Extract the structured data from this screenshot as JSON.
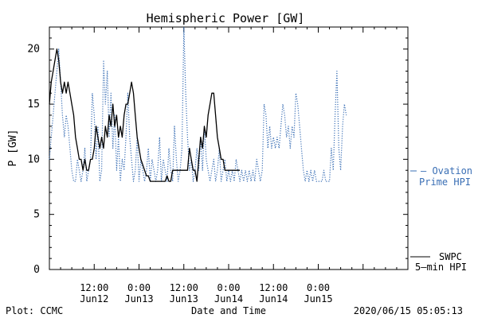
{
  "chart_data": {
    "type": "line",
    "title": "Hemispheric Power [GW]",
    "ylabel": "P [GW]",
    "xlabel": "Date and Time",
    "ylim": [
      0,
      22
    ],
    "xlim_hours": [
      0,
      96
    ],
    "grid": false,
    "yticks": [
      0,
      5,
      10,
      15,
      20
    ],
    "xticks": [
      {
        "t": 12,
        "time": "12:00",
        "date": "Jun12"
      },
      {
        "t": 24,
        "time": "0:00",
        "date": "Jun13"
      },
      {
        "t": 36,
        "time": "12:00",
        "date": "Jun13"
      },
      {
        "t": 48,
        "time": "0:00",
        "date": "Jun14"
      },
      {
        "t": 60,
        "time": "12:00",
        "date": "Jun14"
      },
      {
        "t": 72,
        "time": "0:00",
        "date": "Jun15"
      }
    ],
    "series": [
      {
        "name": "SWPC 5-min HPI",
        "label_line1": "SWPC",
        "label_line2": "5—min HPI",
        "color": "#000000",
        "style": "solid",
        "points": [
          [
            0,
            15
          ],
          [
            0.5,
            17
          ],
          [
            1,
            18
          ],
          [
            1.5,
            19
          ],
          [
            2,
            20
          ],
          [
            2.5,
            19
          ],
          [
            3,
            17
          ],
          [
            3.5,
            16
          ],
          [
            4,
            17
          ],
          [
            4.5,
            16
          ],
          [
            5,
            17
          ],
          [
            5.5,
            16
          ],
          [
            6,
            15
          ],
          [
            6.5,
            14
          ],
          [
            7,
            12
          ],
          [
            7.5,
            11
          ],
          [
            8,
            10
          ],
          [
            8.5,
            10
          ],
          [
            9,
            9
          ],
          [
            9.5,
            10
          ],
          [
            10,
            9
          ],
          [
            10.5,
            9
          ],
          [
            11,
            10
          ],
          [
            11.5,
            10
          ],
          [
            12,
            11
          ],
          [
            12.5,
            13
          ],
          [
            13,
            12
          ],
          [
            13.5,
            11
          ],
          [
            14,
            12
          ],
          [
            14.5,
            11
          ],
          [
            15,
            13
          ],
          [
            15.5,
            12
          ],
          [
            16,
            14
          ],
          [
            16.5,
            13
          ],
          [
            17,
            15
          ],
          [
            17.5,
            13
          ],
          [
            18,
            14
          ],
          [
            18.5,
            12
          ],
          [
            19,
            13
          ],
          [
            19.5,
            12
          ],
          [
            20,
            14
          ],
          [
            20.5,
            15
          ],
          [
            21,
            15
          ],
          [
            21.5,
            16
          ],
          [
            22,
            17
          ],
          [
            22.5,
            16
          ],
          [
            23,
            14
          ],
          [
            23.5,
            12
          ],
          [
            24,
            11
          ],
          [
            24.5,
            10
          ],
          [
            25,
            9.5
          ],
          [
            25.5,
            9
          ],
          [
            26,
            8.5
          ],
          [
            26.5,
            8.5
          ],
          [
            27,
            8
          ],
          [
            28,
            8
          ],
          [
            29,
            8
          ],
          [
            30,
            8
          ],
          [
            31,
            8
          ],
          [
            31.5,
            8.5
          ],
          [
            32,
            8
          ],
          [
            32.5,
            8
          ],
          [
            33,
            9
          ],
          [
            34,
            9
          ],
          [
            35,
            9
          ],
          [
            36,
            9
          ],
          [
            37,
            9
          ],
          [
            37.5,
            11
          ],
          [
            38,
            10
          ],
          [
            38.5,
            9
          ],
          [
            39,
            9
          ],
          [
            39.5,
            8
          ],
          [
            40,
            10
          ],
          [
            40.5,
            12
          ],
          [
            41,
            11
          ],
          [
            41.5,
            13
          ],
          [
            42,
            12
          ],
          [
            42.5,
            14
          ],
          [
            43,
            15
          ],
          [
            43.5,
            16
          ],
          [
            44,
            16
          ],
          [
            44.5,
            14
          ],
          [
            45,
            12
          ],
          [
            45.5,
            11
          ],
          [
            46,
            10
          ],
          [
            46.5,
            10
          ],
          [
            47,
            9
          ],
          [
            48,
            9
          ],
          [
            49,
            9
          ],
          [
            50,
            9
          ],
          [
            51,
            9
          ]
        ]
      },
      {
        "name": "Ovation Prime HPI",
        "label_line1": "— Ovation",
        "label_line2": "Prime HPI",
        "color": "#3a6fb5",
        "style": "dotted",
        "points": [
          [
            0,
            10
          ],
          [
            0.5,
            12
          ],
          [
            1,
            14
          ],
          [
            1.5,
            16
          ],
          [
            2,
            18
          ],
          [
            2.5,
            20
          ],
          [
            3,
            17
          ],
          [
            3.5,
            14
          ],
          [
            4,
            12
          ],
          [
            4.5,
            14
          ],
          [
            5,
            13
          ],
          [
            5.5,
            11
          ],
          [
            6,
            9
          ],
          [
            6.5,
            8
          ],
          [
            7,
            8
          ],
          [
            7.5,
            10
          ],
          [
            8,
            9
          ],
          [
            8.5,
            8
          ],
          [
            9,
            9
          ],
          [
            9.5,
            11
          ],
          [
            10,
            8
          ],
          [
            10.5,
            9
          ],
          [
            11,
            10
          ],
          [
            11.5,
            16
          ],
          [
            12,
            14
          ],
          [
            12.5,
            10
          ],
          [
            13,
            13
          ],
          [
            13.5,
            8
          ],
          [
            14,
            9
          ],
          [
            14.5,
            19
          ],
          [
            15,
            15
          ],
          [
            15.5,
            18
          ],
          [
            16,
            12
          ],
          [
            16.5,
            16
          ],
          [
            17,
            11
          ],
          [
            17.5,
            14
          ],
          [
            18,
            9
          ],
          [
            18.5,
            12
          ],
          [
            19,
            8
          ],
          [
            19.5,
            10
          ],
          [
            20,
            9
          ],
          [
            20.5,
            12
          ],
          [
            21,
            16
          ],
          [
            21.5,
            12
          ],
          [
            22,
            10
          ],
          [
            22.5,
            8
          ],
          [
            23,
            9
          ],
          [
            23.5,
            12
          ],
          [
            24,
            8
          ],
          [
            24.5,
            10
          ],
          [
            25,
            9
          ],
          [
            25.5,
            8
          ],
          [
            26,
            9
          ],
          [
            26.5,
            11
          ],
          [
            27,
            8
          ],
          [
            27.5,
            10
          ],
          [
            28,
            9
          ],
          [
            28.5,
            8
          ],
          [
            29,
            9
          ],
          [
            29.5,
            12
          ],
          [
            30,
            8
          ],
          [
            30.5,
            10
          ],
          [
            31,
            9
          ],
          [
            31.5,
            8
          ],
          [
            32,
            11
          ],
          [
            32.5,
            9
          ],
          [
            33,
            8
          ],
          [
            33.5,
            13
          ],
          [
            34,
            10
          ],
          [
            34.5,
            8
          ],
          [
            35,
            9
          ],
          [
            35.5,
            11
          ],
          [
            36,
            22
          ],
          [
            36.5,
            16
          ],
          [
            37,
            12
          ],
          [
            37.5,
            9
          ],
          [
            38,
            10
          ],
          [
            38.5,
            8
          ],
          [
            39,
            9
          ],
          [
            39.5,
            11
          ],
          [
            40,
            9
          ],
          [
            40.5,
            12
          ],
          [
            41,
            9
          ],
          [
            41.5,
            13
          ],
          [
            42,
            10
          ],
          [
            42.5,
            9
          ],
          [
            43,
            8
          ],
          [
            43.5,
            9
          ],
          [
            44,
            10
          ],
          [
            44.5,
            8
          ],
          [
            45,
            9
          ],
          [
            45.5,
            11
          ],
          [
            46,
            8
          ],
          [
            46.5,
            9
          ],
          [
            47,
            10
          ],
          [
            47.5,
            8
          ],
          [
            48,
            9
          ],
          [
            48.5,
            8
          ],
          [
            49,
            9
          ],
          [
            49.5,
            8
          ],
          [
            50,
            10
          ],
          [
            50.5,
            9
          ],
          [
            51,
            8
          ],
          [
            51.5,
            9
          ],
          [
            52,
            8
          ],
          [
            52.5,
            9
          ],
          [
            53,
            8
          ],
          [
            53.5,
            9
          ],
          [
            54,
            8
          ],
          [
            54.5,
            9
          ],
          [
            55,
            8
          ],
          [
            55.5,
            10
          ],
          [
            56,
            9
          ],
          [
            56.5,
            8
          ],
          [
            57,
            9
          ],
          [
            57.5,
            15
          ],
          [
            58,
            14
          ],
          [
            58.5,
            11
          ],
          [
            59,
            13
          ],
          [
            59.5,
            11
          ],
          [
            60,
            12
          ],
          [
            60.5,
            11
          ],
          [
            61,
            12
          ],
          [
            61.5,
            11
          ],
          [
            62,
            13
          ],
          [
            62.5,
            15
          ],
          [
            63,
            14
          ],
          [
            63.5,
            12
          ],
          [
            64,
            13
          ],
          [
            64.5,
            11
          ],
          [
            65,
            13
          ],
          [
            65.5,
            12
          ],
          [
            66,
            16
          ],
          [
            66.5,
            15
          ],
          [
            67,
            13
          ],
          [
            67.5,
            11
          ],
          [
            68,
            9
          ],
          [
            68.5,
            8
          ],
          [
            69,
            9
          ],
          [
            69.5,
            8
          ],
          [
            70,
            9
          ],
          [
            70.5,
            8
          ],
          [
            71,
            9
          ],
          [
            71.5,
            8
          ],
          [
            72,
            8
          ],
          [
            73,
            8
          ],
          [
            73.5,
            9
          ],
          [
            74,
            8
          ],
          [
            74.5,
            8
          ],
          [
            75,
            8
          ],
          [
            75.5,
            11
          ],
          [
            76,
            9
          ],
          [
            76.5,
            14
          ],
          [
            77,
            18
          ],
          [
            77.5,
            11
          ],
          [
            78,
            9
          ],
          [
            78.5,
            13
          ],
          [
            79,
            15
          ],
          [
            79.5,
            14
          ]
        ]
      }
    ]
  },
  "footer": {
    "left": "Plot: CCMC",
    "center": "Date and Time",
    "right": "2020/06/15 05:05:13"
  }
}
